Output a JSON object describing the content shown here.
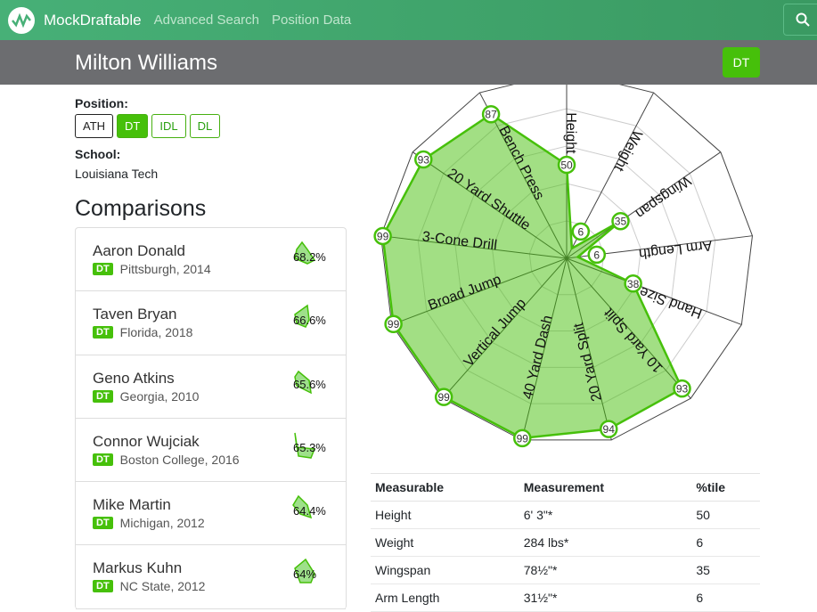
{
  "nav": {
    "brand": "MockDraftable",
    "links": [
      "Advanced Search",
      "Position Data"
    ]
  },
  "player": {
    "name": "Milton Williams",
    "position_badge": "DT",
    "position_label": "Position:",
    "positions": [
      "ATH",
      "DT",
      "IDL",
      "DL"
    ],
    "school_label": "School:",
    "school": "Louisiana Tech"
  },
  "comparisons": {
    "title": "Comparisons",
    "items": [
      {
        "name": "Aaron Donald",
        "pos": "DT",
        "info": "Pittsburgh, 2014",
        "score": "68.2%"
      },
      {
        "name": "Taven Bryan",
        "pos": "DT",
        "info": "Florida, 2018",
        "score": "66.6%"
      },
      {
        "name": "Geno Atkins",
        "pos": "DT",
        "info": "Georgia, 2010",
        "score": "65.6%"
      },
      {
        "name": "Connor Wujciak",
        "pos": "DT",
        "info": "Boston College, 2016",
        "score": "65.3%"
      },
      {
        "name": "Mike Martin",
        "pos": "DT",
        "info": "Michigan, 2012",
        "score": "64.4%"
      },
      {
        "name": "Markus Kuhn",
        "pos": "DT",
        "info": "NC State, 2012",
        "score": "64%"
      }
    ]
  },
  "chart_data": {
    "type": "radar",
    "range": [
      0,
      100
    ],
    "axes": [
      "Height",
      "Weight",
      "Wingspan",
      "Arm Length",
      "Hand Size",
      "10 Yard Split",
      "20 Yard Split",
      "40 Yard Dash",
      "Vertical Jump",
      "Broad Jump",
      "3-Cone Drill",
      "20 Yard Shuttle",
      "Bench Press"
    ],
    "values": [
      50,
      6,
      35,
      6,
      38,
      93,
      94,
      99,
      99,
      99,
      99,
      93,
      87
    ],
    "color": "#46c00a"
  },
  "table": {
    "headers": [
      "Measurable",
      "Measurement",
      "%tile"
    ],
    "rows": [
      [
        "Height",
        "6' 3\"*",
        "50"
      ],
      [
        "Weight",
        "284 lbs*",
        "6"
      ],
      [
        "Wingspan",
        "78½\"*",
        "35"
      ],
      [
        "Arm Length",
        "31½\"*",
        "6"
      ]
    ]
  }
}
